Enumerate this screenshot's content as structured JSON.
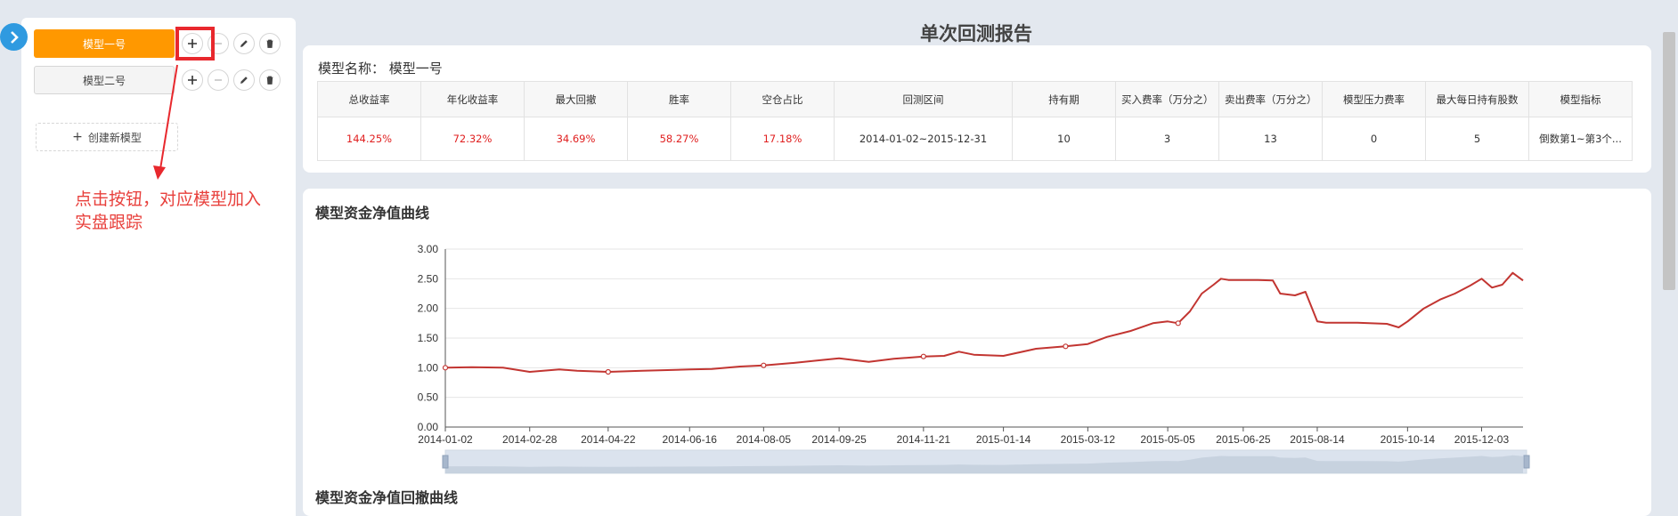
{
  "sidebar": {
    "models": [
      {
        "label": "模型一号",
        "active": true
      },
      {
        "label": "模型二号",
        "active": false
      }
    ],
    "create_label": "创建新模型"
  },
  "annotation": {
    "line1": "点击按钮，对应模型加入",
    "line2": "实盘跟踪"
  },
  "report": {
    "title": "单次回测报告",
    "model_name_label": "模型名称：",
    "model_name_value": "模型一号",
    "headers": [
      "总收益率",
      "年化收益率",
      "最大回撤",
      "胜率",
      "空仓占比",
      "回测区间",
      "持有期",
      "买入费率（万分之）",
      "卖出费率（万分之）",
      "模型压力费率",
      "最大每日持有股数",
      "模型指标"
    ],
    "values": [
      "144.25%",
      "72.32%",
      "34.69%",
      "58.27%",
      "17.18%",
      "2014-01-02~2015-12-31",
      "10",
      "3",
      "13",
      "0",
      "5",
      "倒数第1~第3个..."
    ]
  },
  "charts": {
    "nav_title": "模型资金净值曲线",
    "drawdown_title": "模型资金净值回撤曲线"
  },
  "colors": {
    "accent": "#ff9800",
    "line": "#c23531",
    "highlight": "#e8282d",
    "toggle": "#2f9ae0",
    "negative": "#e02020"
  },
  "chart_data": {
    "type": "line",
    "title": "模型资金净值曲线",
    "ylim": [
      0,
      3
    ],
    "yticks": [
      "0.00",
      "0.50",
      "1.00",
      "1.50",
      "2.00",
      "2.50",
      "3.00"
    ],
    "xticks": [
      "2014-01-02",
      "2014-02-28",
      "2014-04-22",
      "2014-06-16",
      "2014-08-05",
      "2014-09-25",
      "2014-11-21",
      "2015-01-14",
      "2015-03-12",
      "2015-05-05",
      "2015-06-25",
      "2015-08-14",
      "2015-10-14",
      "2015-12-03"
    ],
    "grid": true,
    "has_datazoom": true,
    "series": [
      {
        "x": [
          "2014-01-02",
          "2014-01-20",
          "2014-02-10",
          "2014-02-28",
          "2014-03-20",
          "2014-04-01",
          "2014-04-22",
          "2014-05-15",
          "2014-06-01",
          "2014-06-16",
          "2014-07-01",
          "2014-07-20",
          "2014-08-05",
          "2014-08-25",
          "2014-09-10",
          "2014-09-25",
          "2014-10-15",
          "2014-11-01",
          "2014-11-21",
          "2014-12-05",
          "2014-12-15",
          "2014-12-25",
          "2015-01-14",
          "2015-02-05",
          "2015-02-25",
          "2015-03-12",
          "2015-03-25",
          "2015-04-10",
          "2015-04-25",
          "2015-05-05",
          "2015-05-12",
          "2015-05-20",
          "2015-05-28",
          "2015-06-05",
          "2015-06-10",
          "2015-06-15",
          "2015-06-25",
          "2015-07-05",
          "2015-07-15",
          "2015-07-20",
          "2015-07-30",
          "2015-08-06",
          "2015-08-14",
          "2015-08-20",
          "2015-09-10",
          "2015-09-30",
          "2015-10-08",
          "2015-10-14",
          "2015-10-25",
          "2015-11-05",
          "2015-11-15",
          "2015-11-25",
          "2015-12-03",
          "2015-12-10",
          "2015-12-17",
          "2015-12-24",
          "2015-12-31"
        ],
        "y": [
          1.0,
          1.01,
          1.0,
          0.93,
          0.97,
          0.95,
          0.93,
          0.95,
          0.96,
          0.97,
          0.98,
          1.02,
          1.04,
          1.08,
          1.12,
          1.16,
          1.1,
          1.15,
          1.19,
          1.2,
          1.27,
          1.22,
          1.2,
          1.32,
          1.36,
          1.4,
          1.52,
          1.62,
          1.75,
          1.78,
          1.75,
          1.95,
          2.25,
          2.4,
          2.5,
          2.48,
          2.48,
          2.48,
          2.47,
          2.25,
          2.22,
          2.28,
          1.78,
          1.76,
          1.76,
          1.74,
          1.68,
          1.78,
          2.0,
          2.15,
          2.25,
          2.38,
          2.5,
          2.35,
          2.4,
          2.6,
          2.47
        ]
      }
    ]
  }
}
